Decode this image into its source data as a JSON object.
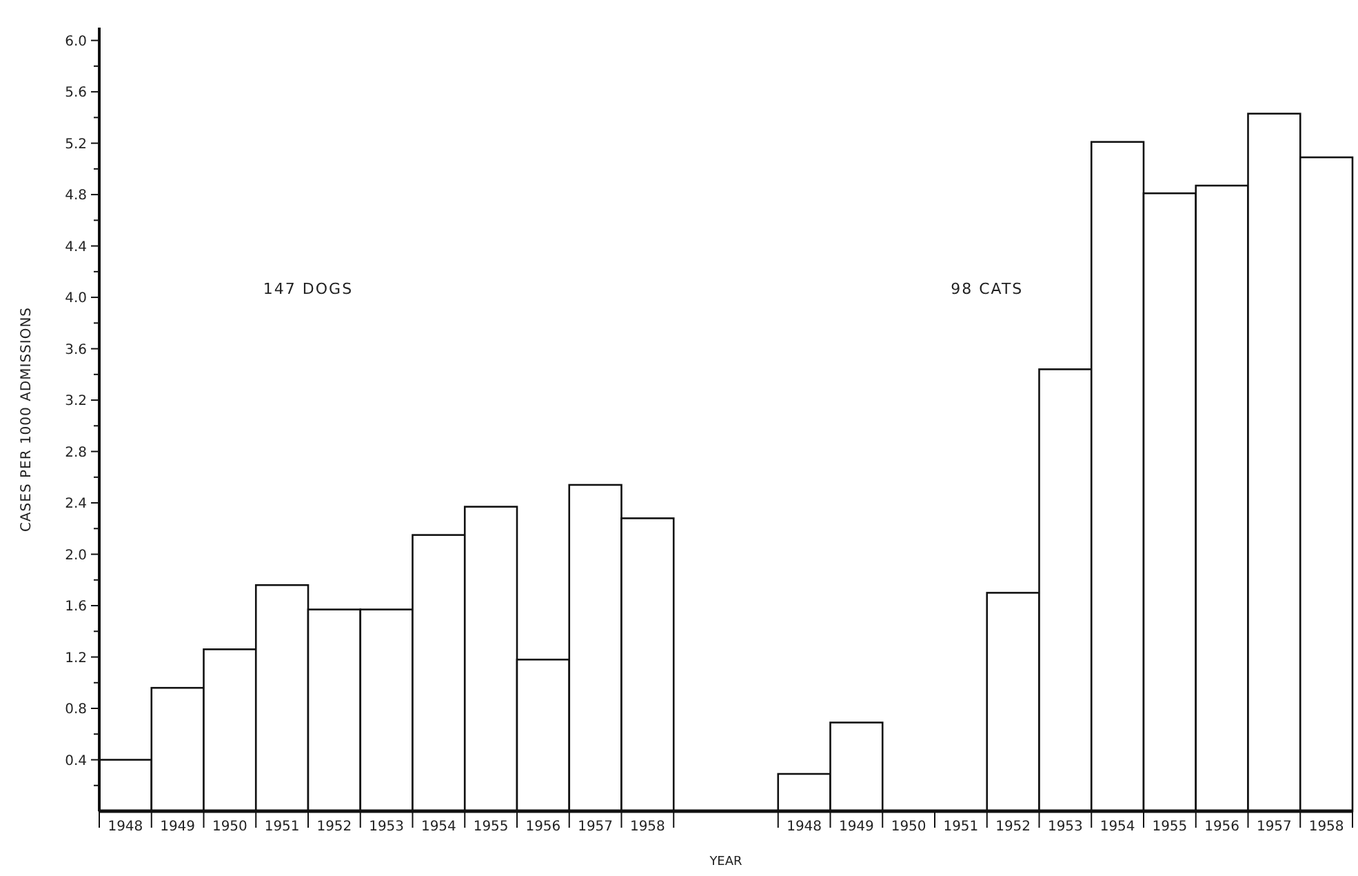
{
  "chart_data": {
    "type": "bar",
    "xlabel": "YEAR",
    "ylabel": "CASES PER 1000 ADMISSIONS",
    "categories": [
      "1948",
      "1949",
      "1950",
      "1951",
      "1952",
      "1953",
      "1954",
      "1955",
      "1956",
      "1957",
      "1958",
      null,
      null,
      "1948",
      "1949",
      "1950",
      "1951",
      "1952",
      "1953",
      "1954",
      "1955",
      "1956",
      "1957",
      "1958"
    ],
    "series": [
      {
        "color": "#ffffff",
        "values": [
          0.4,
          0.96,
          1.26,
          1.76,
          1.57,
          1.57,
          2.15,
          2.37,
          1.18,
          2.54,
          2.28,
          null,
          null,
          null,
          null,
          null,
          null,
          null,
          null,
          null,
          null,
          null,
          null,
          null
        ]
      },
      {
        "color": "#ffffff",
        "values": [
          null,
          null,
          null,
          null,
          null,
          null,
          null,
          null,
          null,
          null,
          null,
          null,
          null,
          0.29,
          0.69,
          0,
          0,
          1.7,
          3.44,
          5.21,
          4.81,
          4.87,
          5.43,
          5.09
        ]
      }
    ],
    "annotations": [
      "147 DOGS",
      "98 CATS"
    ],
    "ylim": [
      0,
      6.1
    ],
    "yticks": [
      {
        "value": 0.2,
        "label": null
      },
      0.4,
      {
        "value": 0.6,
        "label": null
      },
      0.8,
      {
        "value": 1.0,
        "label": null
      },
      1.2,
      {
        "value": 1.4,
        "label": null
      },
      1.6,
      {
        "value": 1.8,
        "label": null
      },
      {
        "value": 2.0,
        "label": "2.0"
      },
      {
        "value": 2.2,
        "label": null
      },
      2.4,
      {
        "value": 2.6,
        "label": null
      },
      2.8,
      {
        "value": 3.0,
        "label": null
      },
      3.2,
      {
        "value": 3.4,
        "label": null
      },
      3.6,
      {
        "value": 3.8,
        "label": null
      },
      {
        "value": 4.0,
        "label": "4.0"
      },
      {
        "value": 4.2,
        "label": null
      },
      4.4,
      {
        "value": 4.6,
        "label": null
      },
      4.8,
      {
        "value": 5.0,
        "label": null
      },
      5.2,
      {
        "value": 5.4,
        "label": null
      },
      5.6,
      {
        "value": 5.8,
        "label": null
      },
      {
        "value": 6.0,
        "label": "6.0"
      }
    ],
    "grid": false,
    "legend": false
  }
}
